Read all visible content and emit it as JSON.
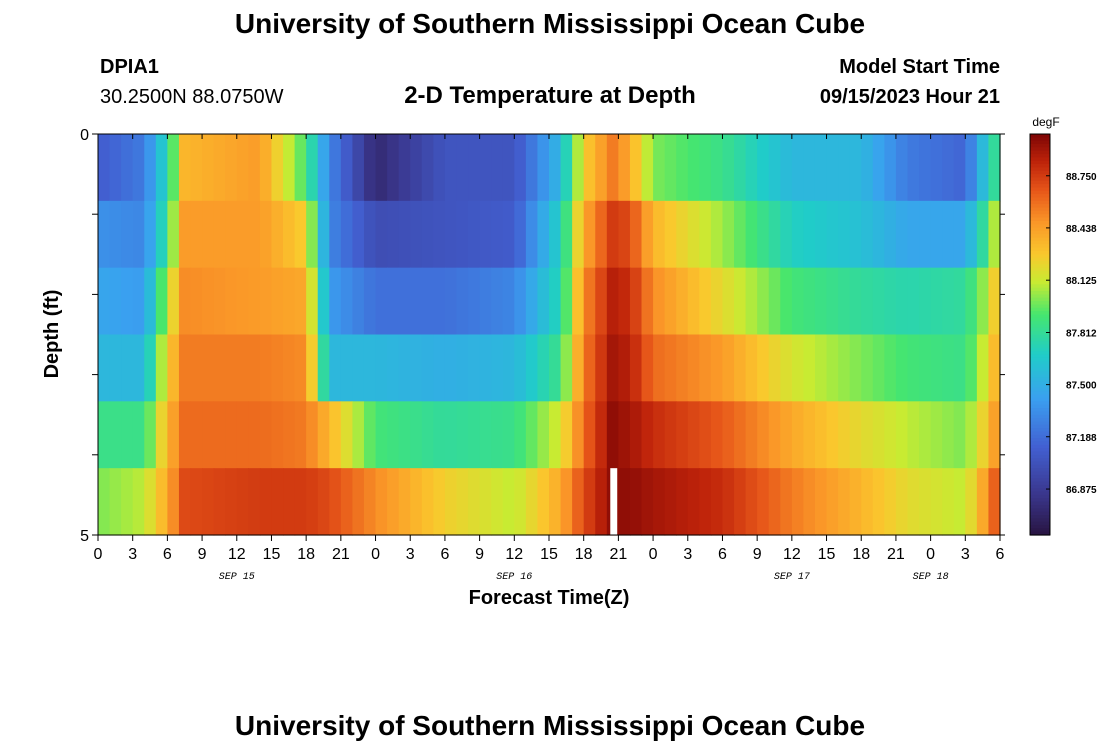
{
  "page": {
    "title": "University of Southern Mississippi Ocean Cube",
    "footer_title": "University of Southern Mississippi Ocean Cube",
    "station_id": "DPIA1",
    "coords": "30.2500N  88.0750W",
    "subtitle": "2-D Temperature at Depth",
    "model_start_label": "Model Start Time",
    "model_start_value": "09/15/2023 Hour 21"
  },
  "chart_data": {
    "type": "heatmap",
    "title": "2-D Temperature at Depth",
    "xlabel": "Forecast Time(Z)",
    "ylabel": "Depth (ft)",
    "y_ticks": [
      "0",
      "5"
    ],
    "ylim": [
      0,
      5
    ],
    "x_tick_labels": [
      "0",
      "3",
      "6",
      "9",
      "12",
      "15",
      "18",
      "21",
      "0",
      "3",
      "6",
      "9",
      "12",
      "15",
      "18",
      "21",
      "0",
      "3",
      "6",
      "9",
      "12",
      "15",
      "18",
      "21",
      "0",
      "3",
      "6"
    ],
    "day_labels": [
      "SEP 15",
      "SEP 16",
      "SEP 17",
      "SEP 18"
    ],
    "colorbar": {
      "unit": "degF",
      "range": [
        86.6,
        89.0
      ],
      "labels": [
        "88.750",
        "88.438",
        "88.125",
        "87.812",
        "87.500",
        "87.188",
        "86.875"
      ]
    },
    "anchors": [
      [
        0.0,
        [
          87.1,
          87.35,
          87.45,
          87.55,
          87.85,
          88.0
        ]
      ],
      [
        4.0,
        [
          87.25,
          87.3,
          87.4,
          87.55,
          87.85,
          88.1
        ]
      ],
      [
        6.0,
        [
          87.75,
          87.85,
          88.1,
          88.25,
          88.35,
          88.4
        ]
      ],
      [
        7.5,
        [
          88.35,
          88.45,
          88.5,
          88.55,
          88.6,
          88.7
        ]
      ],
      [
        14.0,
        [
          88.45,
          88.45,
          88.45,
          88.55,
          88.6,
          88.75
        ]
      ],
      [
        18.0,
        [
          87.9,
          88.25,
          88.4,
          88.5,
          88.55,
          88.75
        ]
      ],
      [
        20.0,
        [
          87.3,
          87.3,
          87.4,
          87.55,
          88.35,
          88.7
        ]
      ],
      [
        24.0,
        [
          86.75,
          87.0,
          87.2,
          87.55,
          87.9,
          88.5
        ]
      ],
      [
        30.0,
        [
          87.05,
          87.05,
          87.2,
          87.5,
          87.8,
          88.25
        ]
      ],
      [
        36.0,
        [
          87.05,
          87.1,
          87.3,
          87.55,
          87.85,
          88.1
        ]
      ],
      [
        40.0,
        [
          87.55,
          87.7,
          87.75,
          87.85,
          88.15,
          88.4
        ]
      ],
      [
        42.0,
        [
          88.25,
          88.4,
          88.5,
          88.55,
          88.6,
          88.7
        ]
      ],
      [
        44.5,
        [
          88.55,
          88.75,
          88.85,
          88.9,
          88.95,
          88.95
        ]
      ],
      [
        46.0,
        [
          88.4,
          88.7,
          88.8,
          88.85,
          88.9,
          88.95
        ]
      ],
      [
        48.0,
        [
          88.0,
          88.35,
          88.5,
          88.6,
          88.8,
          88.9
        ]
      ],
      [
        54.0,
        [
          87.85,
          88.05,
          88.2,
          88.45,
          88.65,
          88.8
        ]
      ],
      [
        60.0,
        [
          87.55,
          87.7,
          87.9,
          88.15,
          88.4,
          88.55
        ]
      ],
      [
        66.0,
        [
          87.55,
          87.6,
          87.8,
          88.0,
          88.2,
          88.35
        ]
      ],
      [
        70.0,
        [
          87.25,
          87.45,
          87.75,
          87.9,
          88.1,
          88.2
        ]
      ],
      [
        75.0,
        [
          87.15,
          87.45,
          87.8,
          87.85,
          88.0,
          88.1
        ]
      ],
      [
        77.0,
        [
          87.7,
          87.9,
          88.1,
          88.2,
          88.3,
          88.5
        ]
      ],
      [
        78.0,
        [
          87.9,
          88.25,
          88.4,
          88.45,
          88.55,
          88.75
        ]
      ]
    ],
    "x_range_hours": [
      0,
      78
    ],
    "depth_rows": 6,
    "gap": {
      "start_hour": 44.3,
      "end_hour": 44.9,
      "row": 5
    }
  }
}
